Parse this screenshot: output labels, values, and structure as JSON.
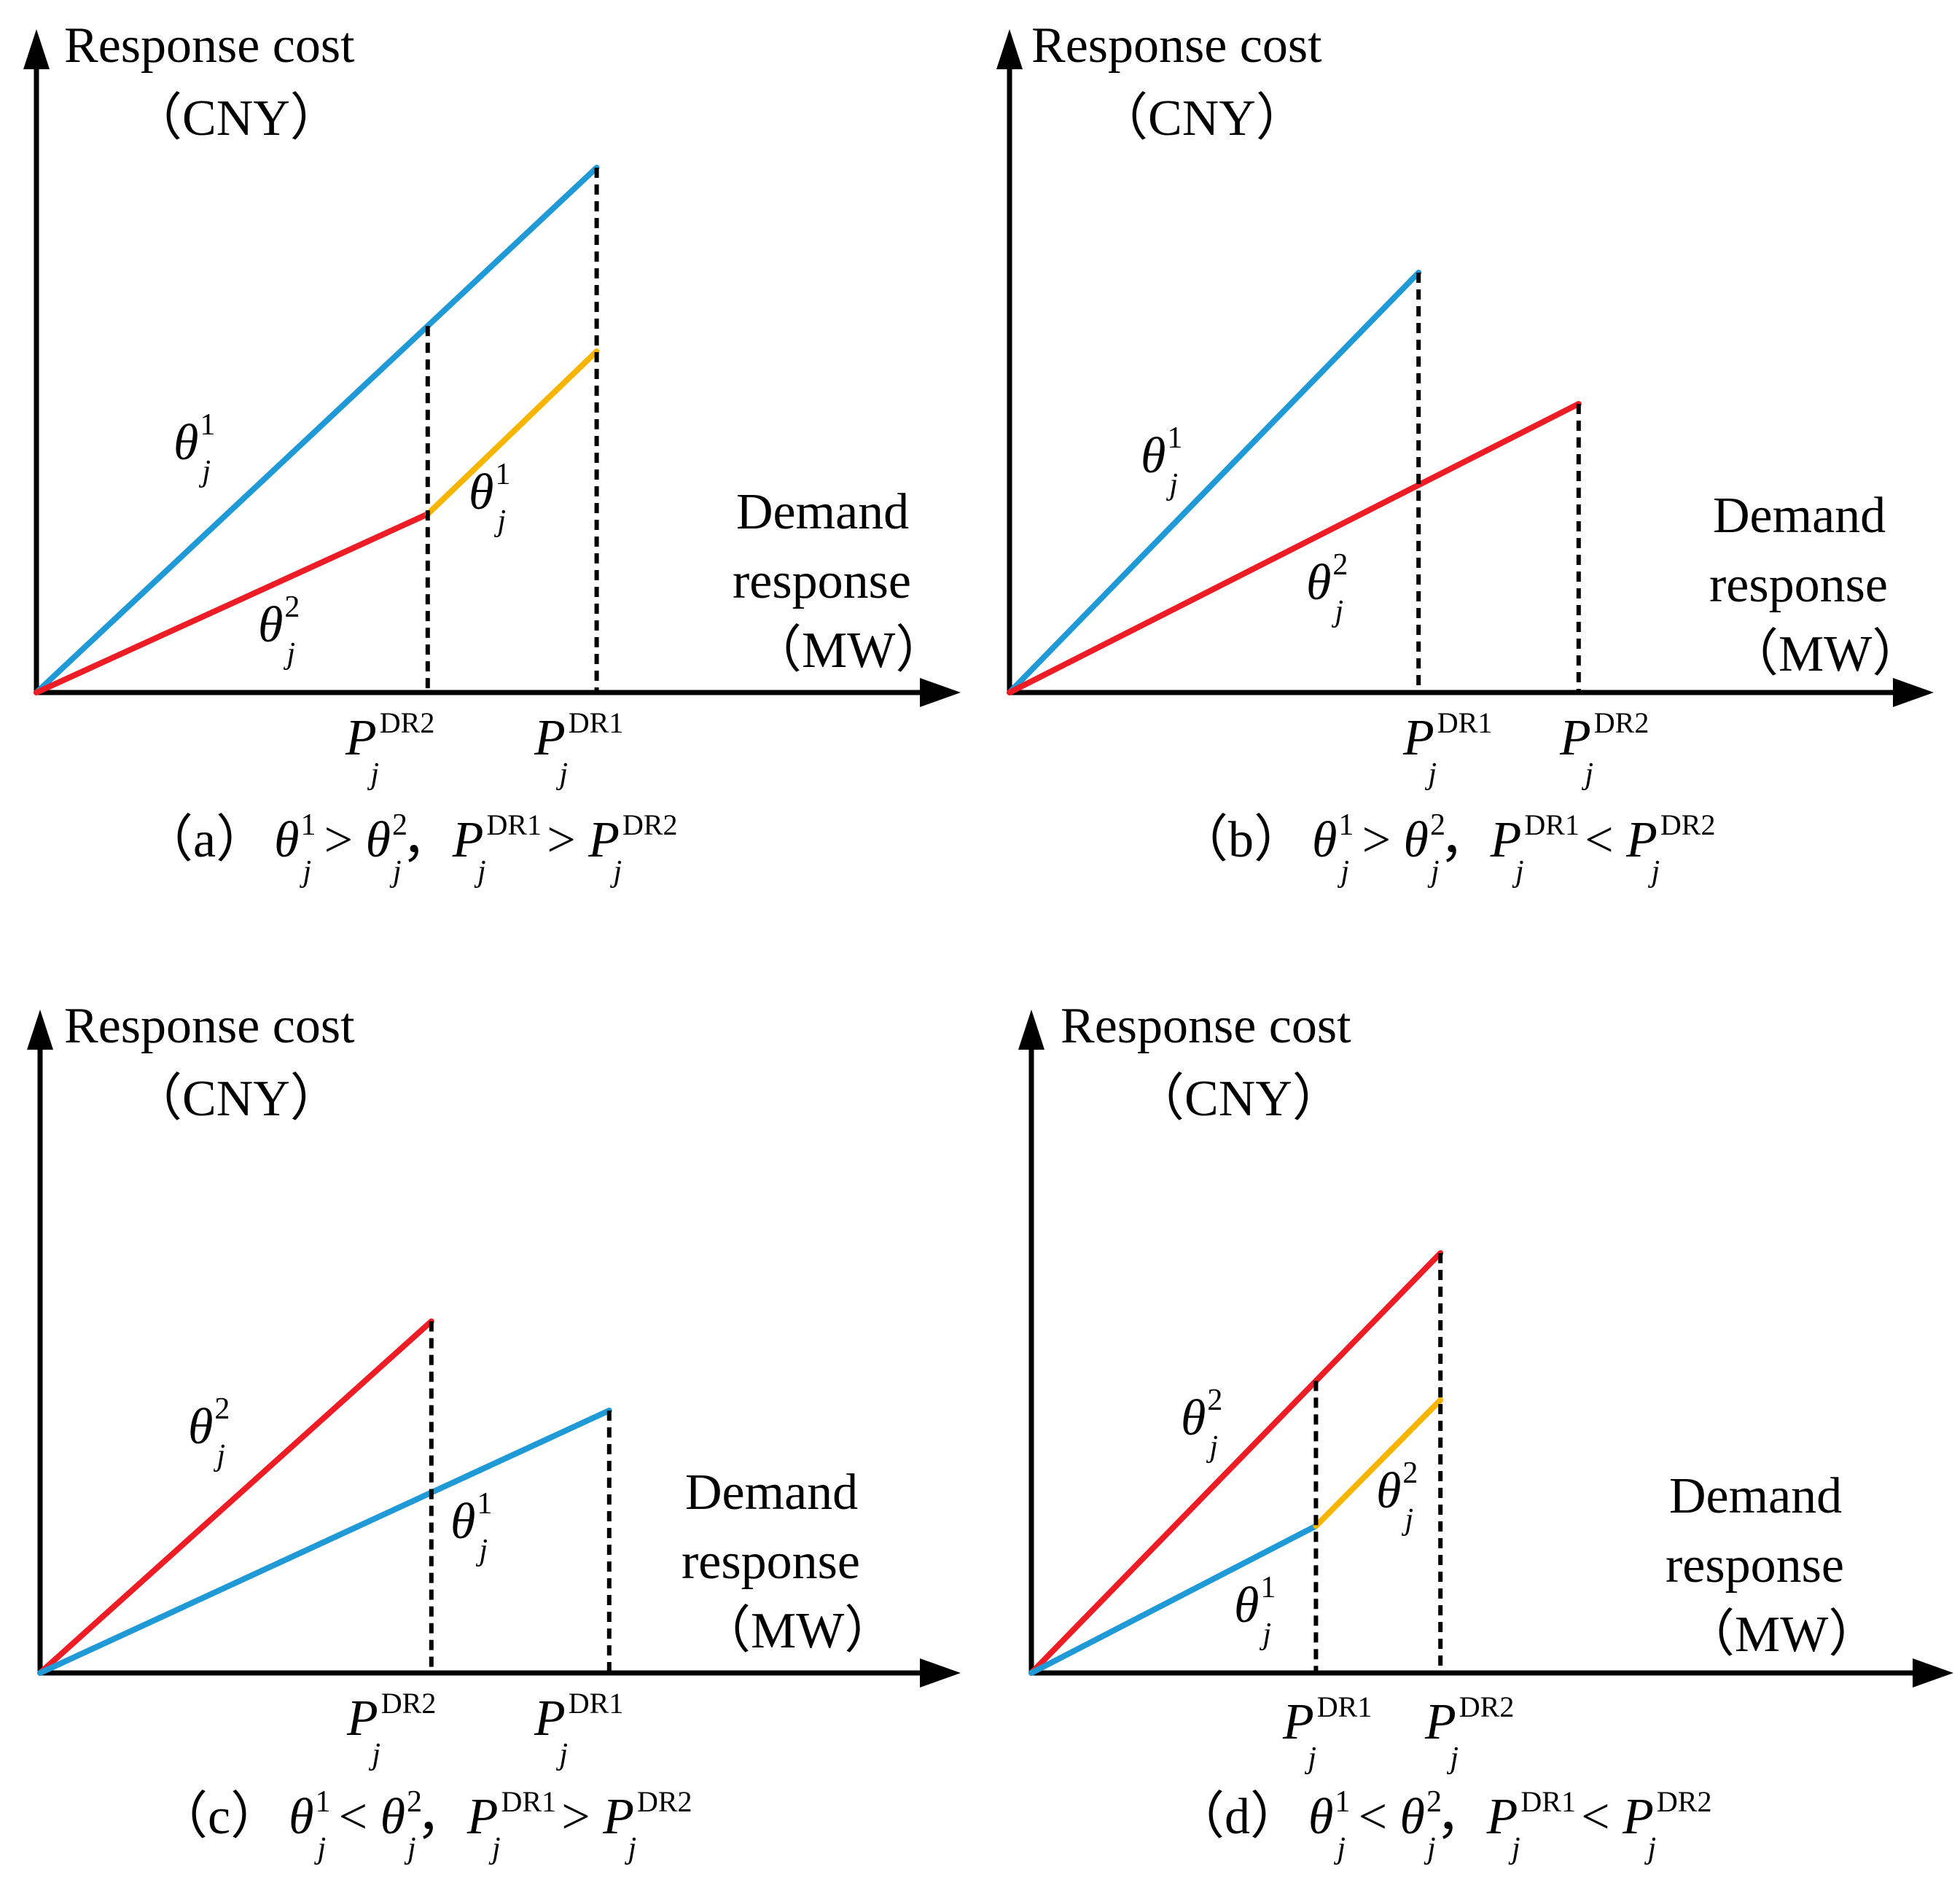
{
  "colors": {
    "blue": "#1f9ad6",
    "red": "#ee1c24",
    "orange": "#f7b500",
    "axis": "#000000"
  },
  "labels": {
    "y_title": "Response cost",
    "y_unit": "（CNY）",
    "x_title_1": "Demand",
    "x_title_2": "response",
    "x_unit": "（MW）",
    "theta": "θ",
    "sub_j": "j",
    "sup_1": "1",
    "sup_2": "2",
    "p": "P",
    "dr1": "DR1",
    "dr2": "DR2",
    "gt": " > ",
    "lt": " < ",
    "sep": "，"
  },
  "panels": [
    {
      "id": "a",
      "tag": "（a）",
      "caption": {
        "theta_rel": " > ",
        "p_rel": " > "
      },
      "chart_data": {
        "type": "line",
        "x_axis_label": "Demand response (MW)",
        "y_axis_label": "Response cost (CNY)",
        "series": [
          {
            "name": "θ_j^1",
            "color": "blue",
            "points": [
              [
                0,
                0
              ],
              [
                0.63,
                1.0
              ]
            ]
          },
          {
            "name": "θ_j^2",
            "color": "red",
            "points": [
              [
                0,
                0
              ],
              [
                0.44,
                0.34
              ]
            ]
          },
          {
            "name": "θ_j^1 (after P_j^DR2)",
            "color": "orange",
            "points": [
              [
                0.44,
                0.34
              ],
              [
                0.63,
                0.65
              ]
            ]
          }
        ],
        "markers": [
          {
            "label": "P_j^DR2",
            "x": 0.44
          },
          {
            "label": "P_j^DR1",
            "x": 0.63
          }
        ]
      }
    },
    {
      "id": "b",
      "tag": "（b）",
      "caption": {
        "theta_rel": " > ",
        "p_rel": " < "
      },
      "chart_data": {
        "type": "line",
        "x_axis_label": "Demand response (MW)",
        "y_axis_label": "Response cost (CNY)",
        "series": [
          {
            "name": "θ_j^1",
            "color": "blue",
            "points": [
              [
                0,
                0
              ],
              [
                0.46,
                0.8
              ]
            ]
          },
          {
            "name": "θ_j^2",
            "color": "red",
            "points": [
              [
                0,
                0
              ],
              [
                0.64,
                0.55
              ]
            ]
          }
        ],
        "markers": [
          {
            "label": "P_j^DR1",
            "x": 0.46
          },
          {
            "label": "P_j^DR2",
            "x": 0.64
          }
        ]
      }
    },
    {
      "id": "c",
      "tag": "（c）",
      "caption": {
        "theta_rel": " < ",
        "p_rel": " > "
      },
      "chart_data": {
        "type": "line",
        "x_axis_label": "Demand response (MW)",
        "y_axis_label": "Response cost (CNY)",
        "series": [
          {
            "name": "θ_j^2",
            "color": "red",
            "points": [
              [
                0,
                0
              ],
              [
                0.44,
                0.67
              ]
            ]
          },
          {
            "name": "θ_j^1",
            "color": "blue",
            "points": [
              [
                0,
                0
              ],
              [
                0.64,
                0.5
              ]
            ]
          }
        ],
        "markers": [
          {
            "label": "P_j^DR2",
            "x": 0.44
          },
          {
            "label": "P_j^DR1",
            "x": 0.64
          }
        ]
      }
    },
    {
      "id": "d",
      "tag": "（d）",
      "caption": {
        "theta_rel": " < ",
        "p_rel": " < "
      },
      "chart_data": {
        "type": "line",
        "x_axis_label": "Demand response (MW)",
        "y_axis_label": "Response cost (CNY)",
        "series": [
          {
            "name": "θ_j^2",
            "color": "red",
            "points": [
              [
                0,
                0
              ],
              [
                0.46,
                0.8
              ]
            ]
          },
          {
            "name": "θ_j^1",
            "color": "blue",
            "points": [
              [
                0,
                0
              ],
              [
                0.32,
                0.28
              ]
            ]
          },
          {
            "name": "θ_j^2 (after P_j^DR1)",
            "color": "orange",
            "points": [
              [
                0.32,
                0.28
              ],
              [
                0.46,
                0.52
              ]
            ]
          }
        ],
        "markers": [
          {
            "label": "P_j^DR1",
            "x": 0.32
          },
          {
            "label": "P_j^DR2",
            "x": 0.46
          }
        ]
      }
    }
  ]
}
